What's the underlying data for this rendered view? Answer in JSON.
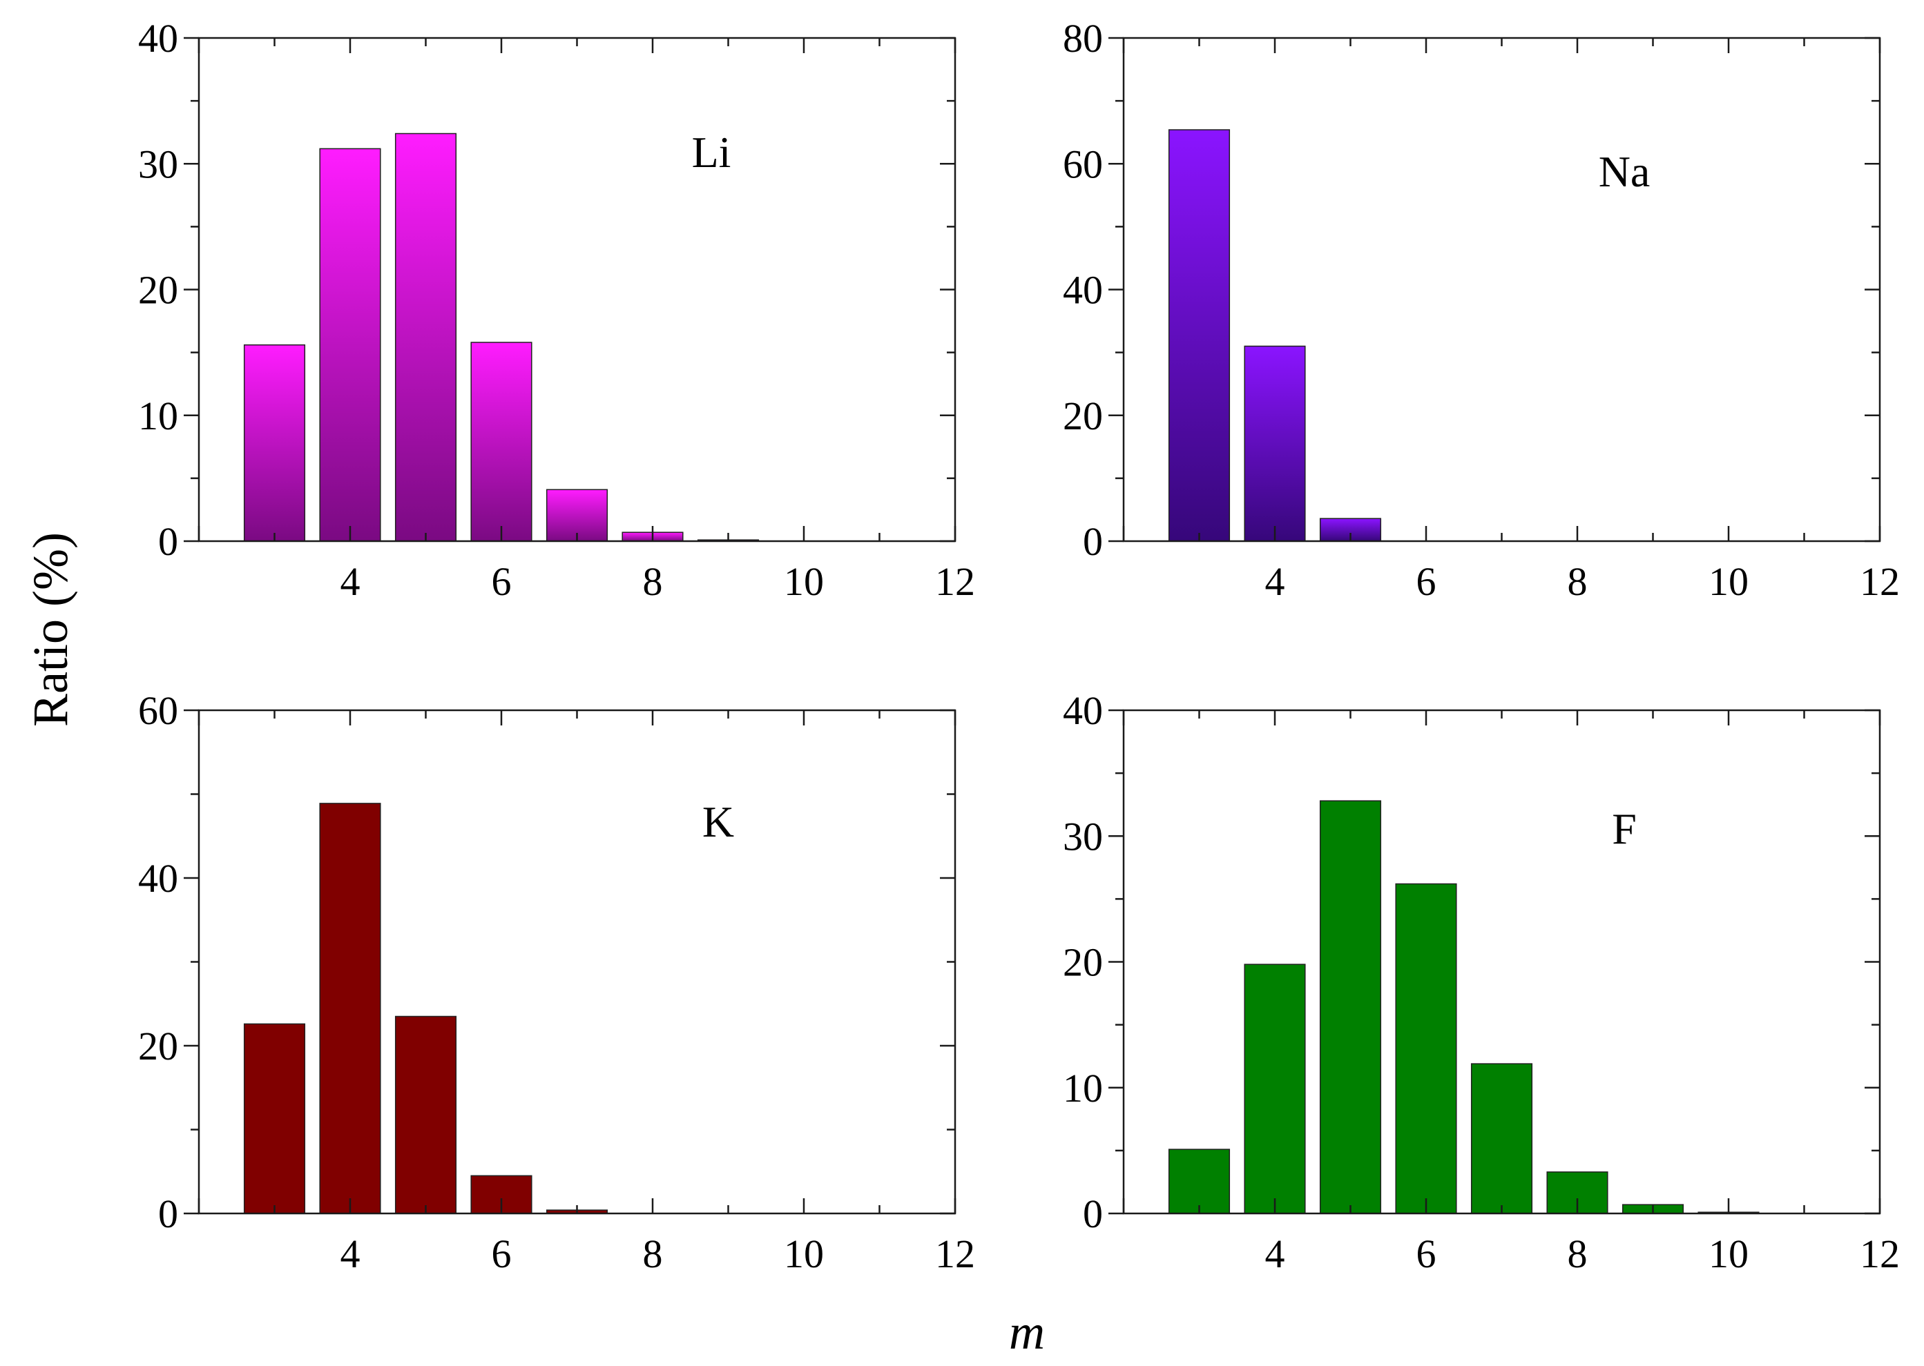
{
  "figure": {
    "ylabel": "Ratio (%)",
    "xlabel": "m"
  },
  "chart_data": [
    {
      "type": "bar",
      "title": "",
      "panel_label": "Li",
      "xlabel": "m",
      "ylabel": "Ratio (%)",
      "x": [
        3,
        4,
        5,
        6,
        7,
        8,
        9
      ],
      "values": [
        15.6,
        31.2,
        32.4,
        15.8,
        4.1,
        0.7,
        0.1
      ],
      "xlim": [
        2,
        12
      ],
      "ylim": [
        0,
        40
      ],
      "xticks": [
        4,
        6,
        8,
        10,
        12
      ],
      "yticks": [
        0,
        10,
        20,
        30,
        40
      ],
      "bar_width": 0.8,
      "color_top": "#ff1cff",
      "color_bottom": "#7a0a82"
    },
    {
      "type": "bar",
      "title": "",
      "panel_label": "Na",
      "xlabel": "m",
      "ylabel": "Ratio (%)",
      "x": [
        3,
        4,
        5
      ],
      "values": [
        65.4,
        31.0,
        3.6
      ],
      "xlim": [
        2,
        12
      ],
      "ylim": [
        0,
        80
      ],
      "xticks": [
        4,
        6,
        8,
        10,
        12
      ],
      "yticks": [
        0,
        20,
        40,
        60,
        80
      ],
      "bar_width": 0.8,
      "color_top": "#8b14ff",
      "color_bottom": "#36077a"
    },
    {
      "type": "bar",
      "title": "",
      "panel_label": "K",
      "xlabel": "m",
      "ylabel": "Ratio (%)",
      "x": [
        3,
        4,
        5,
        6,
        7
      ],
      "values": [
        22.6,
        48.9,
        23.5,
        4.5,
        0.4
      ],
      "xlim": [
        2,
        12
      ],
      "ylim": [
        0,
        60
      ],
      "xticks": [
        4,
        6,
        8,
        10,
        12
      ],
      "yticks": [
        0,
        20,
        40,
        60
      ],
      "bar_width": 0.8,
      "color_top": "#800000",
      "color_bottom": "#800000"
    },
    {
      "type": "bar",
      "title": "",
      "panel_label": "F",
      "xlabel": "m",
      "ylabel": "Ratio (%)",
      "x": [
        3,
        4,
        5,
        6,
        7,
        8,
        9,
        10
      ],
      "values": [
        5.1,
        19.8,
        32.8,
        26.2,
        11.9,
        3.3,
        0.7,
        0.1
      ],
      "xlim": [
        2,
        12
      ],
      "ylim": [
        0,
        40
      ],
      "xticks": [
        4,
        6,
        8,
        10,
        12
      ],
      "yticks": [
        0,
        10,
        20,
        30,
        40
      ],
      "bar_width": 0.8,
      "color_top": "#008000",
      "color_bottom": "#008000"
    }
  ]
}
